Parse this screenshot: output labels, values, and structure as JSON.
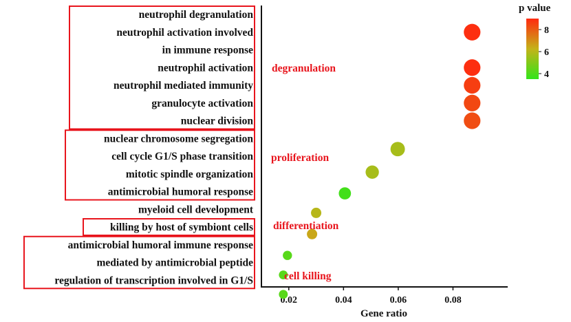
{
  "chart_data": {
    "type": "scatter",
    "title": "",
    "xlabel": "Gene ratio",
    "ylabel": "",
    "xlim": [
      0.01,
      0.1
    ],
    "xticks": [
      0.02,
      0.04,
      0.06,
      0.08
    ],
    "xtick_labels": [
      "0.02",
      "0.04",
      "0.06",
      "0.08"
    ],
    "terms": [
      "neutrophil degranulation",
      "neutrophil activation involved",
      "in immune response",
      "neutrophil activation",
      "neutrophil mediated immunity",
      "granulocyte activation",
      "nuclear division",
      "nuclear chromosome segregation",
      "cell cycle G1/S phase transition",
      "mitotic spindle organization",
      "antimicrobial humoral response",
      "myeloid cell development",
      "killing by host of symbiont cells",
      "antimicrobial humoral immune response",
      "mediated by antimicrobial peptide",
      "regulation of transcription involved in G1/S"
    ],
    "points": [
      {
        "row": 1,
        "x": 0.087,
        "p": 8.9,
        "size": 3
      },
      {
        "row": 3,
        "x": 0.087,
        "p": 8.9,
        "size": 3
      },
      {
        "row": 4,
        "x": 0.087,
        "p": 8.6,
        "size": 3
      },
      {
        "row": 5,
        "x": 0.087,
        "p": 8.4,
        "size": 3
      },
      {
        "row": 6,
        "x": 0.087,
        "p": 8.3,
        "size": 3
      },
      {
        "row": 7.6,
        "x": 0.0598,
        "p": 5.7,
        "size": 2.4
      },
      {
        "row": 8.9,
        "x": 0.0505,
        "p": 5.7,
        "size": 2.1
      },
      {
        "row": 10.1,
        "x": 0.0405,
        "p": 3.8,
        "size": 1.8
      },
      {
        "row": 11.2,
        "x": 0.03,
        "p": 6.0,
        "size": 1.3
      },
      {
        "row": 12.4,
        "x": 0.0285,
        "p": 6.5,
        "size": 1.3
      },
      {
        "row": 13.6,
        "x": 0.0195,
        "p": 4.2,
        "size": 1.0
      },
      {
        "row": 14.7,
        "x": 0.018,
        "p": 4.2,
        "size": 0.9
      },
      {
        "row": 15.8,
        "x": 0.018,
        "p": 4.2,
        "size": 0.9
      }
    ],
    "groups": [
      {
        "label": "degranulation",
        "box_rows": [
          0,
          6
        ]
      },
      {
        "label": "proliferation",
        "box_rows": [
          7,
          10
        ]
      },
      {
        "label": "differentiation",
        "box_rows": [
          12,
          12
        ]
      },
      {
        "label": "cell killing",
        "box_rows": [
          13,
          15
        ]
      }
    ],
    "legend": {
      "title": "p value",
      "ticks": [
        4,
        6,
        8
      ],
      "tick_labels": [
        "4",
        "6",
        "8"
      ],
      "range": [
        3.5,
        9
      ],
      "colors": [
        "#33e41a",
        "#c4b31a",
        "#ff2a10"
      ],
      "placement": "top-right"
    }
  }
}
